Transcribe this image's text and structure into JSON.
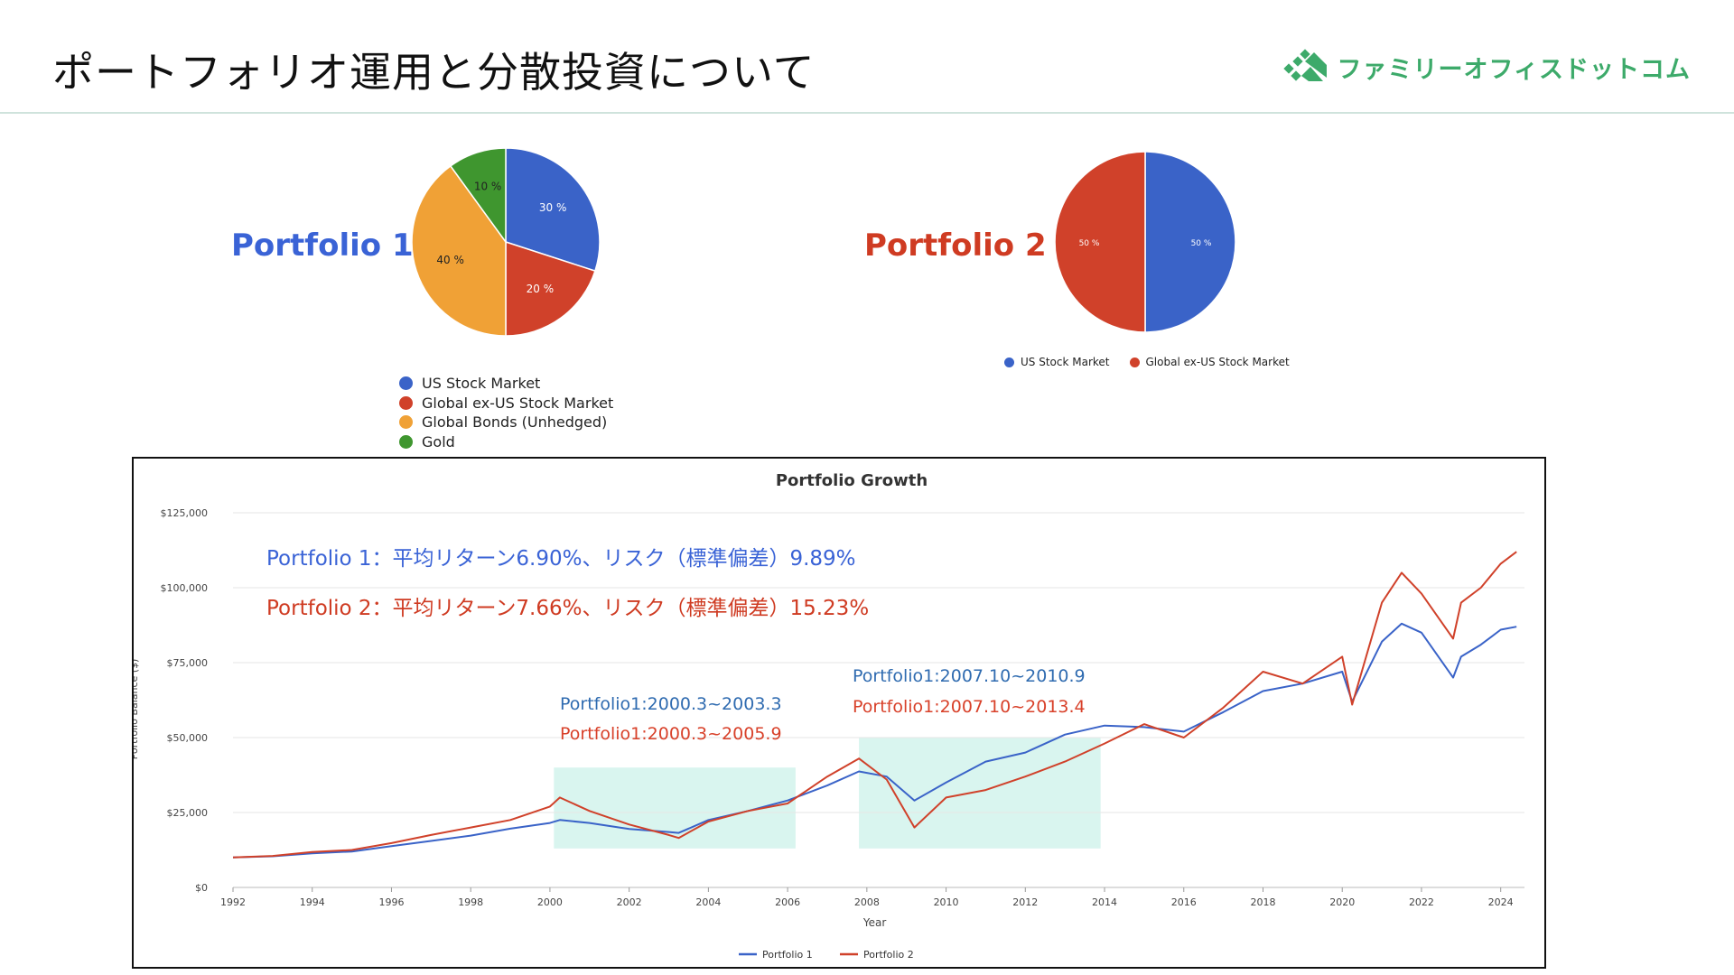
{
  "page": {
    "title": "ポートフォリオ運用と分散投資について",
    "logo_text": "ファミリーオフィスドットコム",
    "logo_icon": "green-diamond-cluster-icon"
  },
  "portfolios": {
    "p1_label": "Portfolio 1",
    "p2_label": "Portfolio 2"
  },
  "colors": {
    "us_stock": "#3a63c8",
    "global_ex_us": "#d0412a",
    "global_bonds": "#f0a136",
    "gold": "#3f962f",
    "p1_text": "#3a63d6",
    "p2_text": "#cf3b22",
    "annot_p1": "#2f6bb0",
    "annot_p2": "#d8412a",
    "highlight": "#d9f5ef",
    "logo_green": "#3daa6a"
  },
  "chart_data": [
    {
      "type": "pie",
      "name": "Portfolio 1",
      "slices": [
        {
          "label": "US Stock Market",
          "value": 30,
          "label_text": "30 %",
          "color": "#3a63c8"
        },
        {
          "label": "Global ex-US Stock Market",
          "value": 20,
          "label_text": "20 %",
          "color": "#d0412a"
        },
        {
          "label": "Global Bonds (Unhedged)",
          "value": 40,
          "label_text": "40 %",
          "color": "#f0a136"
        },
        {
          "label": "Gold",
          "value": 10,
          "label_text": "10 %",
          "color": "#3f962f"
        }
      ],
      "legend": [
        "US Stock Market",
        "Global ex-US Stock Market",
        "Global Bonds (Unhedged)",
        "Gold"
      ],
      "legend_placement": "bottom"
    },
    {
      "type": "pie",
      "name": "Portfolio 2",
      "slices": [
        {
          "label": "US Stock Market",
          "value": 50,
          "label_text": "50 %",
          "color": "#3a63c8"
        },
        {
          "label": "Global ex-US Stock Market",
          "value": 50,
          "label_text": "50 %",
          "color": "#d0412a"
        }
      ],
      "legend": [
        "US Stock Market",
        "Global ex-US Stock Market"
      ],
      "legend_placement": "bottom"
    },
    {
      "type": "line",
      "title": "Portfolio Growth",
      "xlabel": "Year",
      "ylabel": "Portfolio Balance ($)",
      "xlim": [
        1992,
        2024.6
      ],
      "ylim": [
        0,
        125000
      ],
      "y_ticks": [
        "$0",
        "$25,000",
        "$50,000",
        "$75,000",
        "$100,000",
        "$125,000"
      ],
      "y_tick_values": [
        0,
        25000,
        50000,
        75000,
        100000,
        125000
      ],
      "x_ticks": [
        "1992",
        "1994",
        "1996",
        "1998",
        "2000",
        "2002",
        "2004",
        "2006",
        "2008",
        "2010",
        "2012",
        "2014",
        "2016",
        "2018",
        "2020",
        "2022",
        "2024"
      ],
      "grid": true,
      "legend_placement": "bottom",
      "series": [
        {
          "name": "Portfolio 1",
          "color": "#3a63c8",
          "x": [
            1992,
            1993,
            1994,
            1995,
            1996,
            1997,
            1998,
            1999,
            2000,
            2000.25,
            2001,
            2002,
            2003,
            2003.25,
            2004,
            2005,
            2006,
            2007,
            2007.8,
            2008.5,
            2009.2,
            2010,
            2011,
            2012,
            2013,
            2014,
            2015,
            2016,
            2017,
            2018,
            2019,
            2020,
            2020.25,
            2021,
            2021.5,
            2022,
            2022.8,
            2023,
            2023.5,
            2024,
            2024.4
          ],
          "values": [
            10000,
            10400,
            11400,
            12000,
            13800,
            15500,
            17300,
            19600,
            21500,
            22500,
            21500,
            19500,
            18500,
            18200,
            22500,
            25500,
            29000,
            34000,
            38700,
            37000,
            29000,
            35000,
            42000,
            45000,
            51000,
            54000,
            53500,
            52000,
            58500,
            65500,
            68000,
            72000,
            62000,
            82000,
            88000,
            85000,
            70000,
            77000,
            81000,
            86000,
            87000
          ]
        },
        {
          "name": "Portfolio 2",
          "color": "#d0412a",
          "x": [
            1992,
            1993,
            1994,
            1995,
            1996,
            1997,
            1998,
            1999,
            2000,
            2000.25,
            2001,
            2002,
            2003,
            2003.25,
            2004,
            2005,
            2006,
            2007,
            2007.8,
            2008.5,
            2009.2,
            2010,
            2011,
            2012,
            2013,
            2014,
            2015,
            2016,
            2017,
            2018,
            2019,
            2020,
            2020.25,
            2021,
            2021.5,
            2022,
            2022.8,
            2023,
            2023.5,
            2024,
            2024.4
          ],
          "values": [
            10000,
            10500,
            11800,
            12500,
            14800,
            17500,
            20000,
            22500,
            27000,
            30000,
            25500,
            21000,
            17500,
            16500,
            22000,
            25500,
            28000,
            37000,
            43000,
            36000,
            20000,
            30000,
            32500,
            37000,
            42000,
            48000,
            54500,
            50000,
            60000,
            72000,
            68000,
            77000,
            61000,
            95000,
            105000,
            98000,
            83000,
            95000,
            100000,
            108000,
            112000
          ]
        }
      ],
      "annotations": {
        "p1_summary": "Portfolio 1：平均リターン6.90%、リスク（標準偏差）9.89%",
        "p2_summary": "Portfolio 2：平均リターン7.66%、リスク（標準偏差）15.23%",
        "period1_p1": "Portfolio1:2000.3~2003.3",
        "period1_p2": "Portfolio1:2000.3~2005.9",
        "period2_p1": "Portfolio1:2007.10~2010.9",
        "period2_p2": "Portfolio1:2007.10~2013.4"
      },
      "highlight_periods": [
        {
          "x_start": 2000.1,
          "x_end": 2006.2,
          "y_start": 13000,
          "y_end": 40000
        },
        {
          "x_start": 2007.8,
          "x_end": 2013.9,
          "y_start": 13000,
          "y_end": 50000
        }
      ]
    }
  ]
}
